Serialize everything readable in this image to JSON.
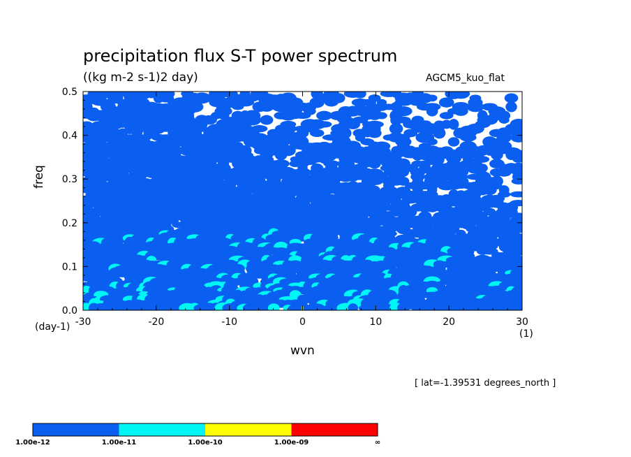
{
  "chart_data": {
    "type": "heatmap",
    "title": "precipitation flux S-T power spectrum",
    "subtitle": "((kg m-2 s-1)2 day)",
    "model_label": "AGCM5_kuo_flat",
    "xlabel": "wvn",
    "ylabel": "freq",
    "x_unit": "(1)",
    "y_unit": "(day-1)",
    "xlim": [
      -30,
      30
    ],
    "ylim": [
      0.0,
      0.5
    ],
    "x_ticks": [
      "-30",
      "-20",
      "-10",
      "0",
      "10",
      "20",
      "30"
    ],
    "y_ticks": [
      "0.0",
      "0.1",
      "0.2",
      "0.3",
      "0.4",
      "0.5"
    ],
    "note": "[ lat=-1.39531 degrees_north ]",
    "colorbar": {
      "levels": [
        "1.00e-12",
        "1.00e-11",
        "1.00e-10",
        "1.00e-09",
        "∞"
      ],
      "colors": [
        "#0a5ff0",
        "#00f5f5",
        "#ffff00",
        "#ff0000"
      ]
    },
    "background_color": "#ffffff"
  }
}
